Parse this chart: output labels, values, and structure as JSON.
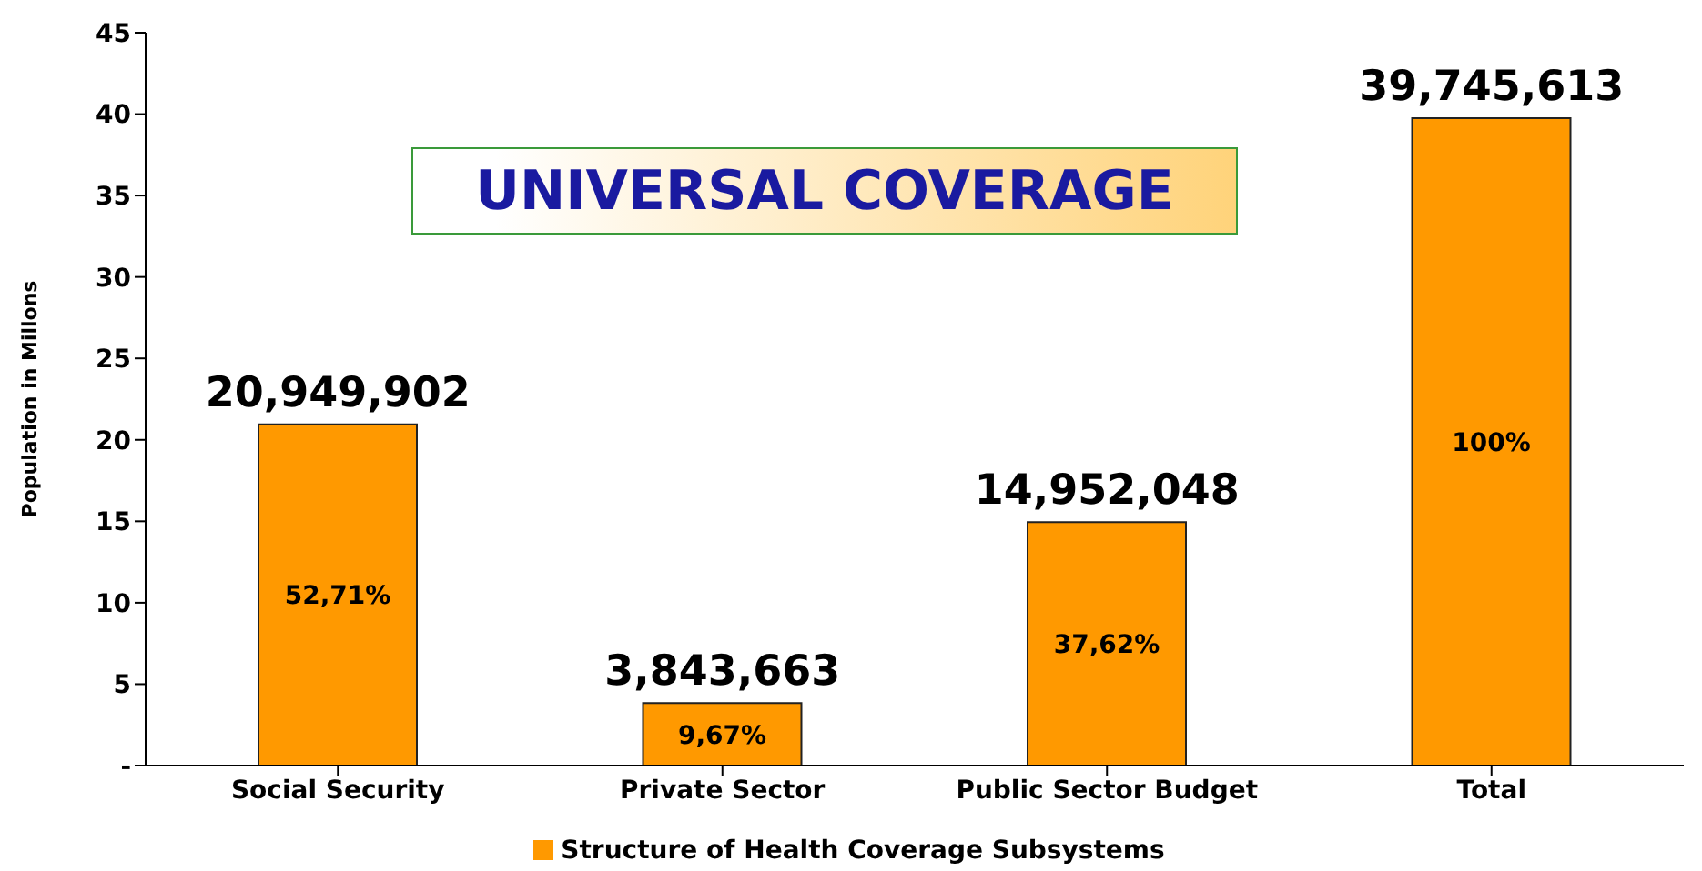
{
  "chart_data": {
    "type": "bar",
    "title": "UNIVERSAL COVERAGE",
    "ylabel": "Population in Millons",
    "categories": [
      "Social Security",
      "Private Sector",
      "Public Sector Budget",
      "Total"
    ],
    "series": [
      {
        "name": "Structure of Health Coverage Subsystems",
        "color": "#ff9900",
        "values": [
          20.949902,
          3.843663,
          14.952048,
          39.745613
        ]
      }
    ],
    "ylim": [
      0,
      45
    ],
    "yticks": [
      {
        "value": 0,
        "label": "-"
      },
      5,
      10,
      15,
      20,
      25,
      30,
      35,
      40,
      45
    ],
    "grid": false,
    "legend": "bottom",
    "annotations": [
      {
        "text": "20,949,902",
        "x": "Social Security",
        "y": 20.949902
      },
      {
        "text": "3,843,663",
        "x": "Private Sector",
        "y": 3.843663
      },
      {
        "text": "14,952,048",
        "x": "Public Sector Budget",
        "y": 14.952048
      },
      {
        "text": "39,745,613",
        "x": "Total",
        "y": 39.745613
      },
      "52,71%",
      "9,67%",
      "37,62%",
      "100%"
    ]
  }
}
